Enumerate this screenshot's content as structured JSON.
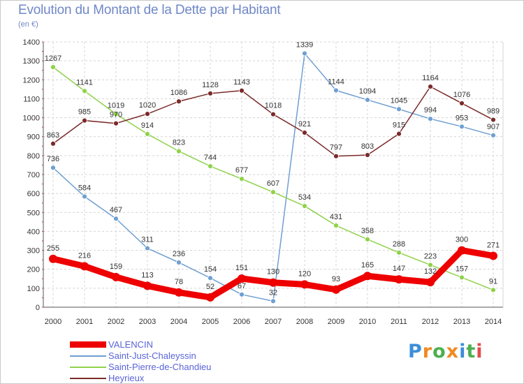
{
  "header": {
    "title": "Evolution du Montant de la Dette par Habitant",
    "subtitle": "(en €)"
  },
  "brand": {
    "letters": [
      "P",
      "r",
      "o",
      "x",
      "i",
      "t",
      "i"
    ],
    "colors": [
      "#3c8ed8",
      "#f08a24",
      "#4caf50",
      "#f08a24",
      "#3c8ed8",
      "#4caf50",
      "#e34b4b"
    ]
  },
  "chart_data": {
    "type": "line",
    "title": "Evolution du Montant de la Dette par Habitant",
    "ylabel": "(en €)",
    "xlabel": "",
    "x": [
      "2000",
      "2001",
      "2002",
      "2003",
      "2004",
      "2005",
      "2006",
      "2007",
      "2008",
      "2009",
      "2010",
      "2011",
      "2012",
      "2013",
      "2014"
    ],
    "ylim": [
      0,
      1400
    ],
    "yticks": [
      "0",
      "100",
      "200",
      "300",
      "400",
      "500",
      "600",
      "700",
      "800",
      "900",
      "1000",
      "1100",
      "1200",
      "1300",
      "1400"
    ],
    "grid": true,
    "legend_position": "bottom-left",
    "series": [
      {
        "name": "VALENCIN",
        "color": "#ee0000",
        "emphasis": true,
        "values": [
          255,
          216,
          159,
          113,
          78,
          52,
          151,
          130,
          120,
          93,
          165,
          147,
          132,
          300,
          271
        ],
        "labels": [
          "255",
          "216",
          "159",
          "113",
          "78",
          "52",
          "151",
          "130",
          "120",
          "93",
          "165",
          "147",
          "132",
          "300",
          "271"
        ]
      },
      {
        "name": "Saint-Just-Chaleyssin",
        "color": "#6f9fd2",
        "emphasis": false,
        "values": [
          736,
          584,
          467,
          311,
          236,
          154,
          67,
          32,
          1339,
          1144,
          1094,
          1045,
          994,
          953,
          907
        ],
        "labels": [
          "736",
          "584",
          "467",
          "311",
          "236",
          "154",
          "67",
          "32",
          "1339",
          "1144",
          "1094",
          "1045",
          "994",
          "953",
          "907"
        ]
      },
      {
        "name": "Saint-Pierre-de-Chandieu",
        "color": "#8fd24a",
        "emphasis": false,
        "values": [
          1267,
          1141,
          1019,
          914,
          823,
          744,
          677,
          607,
          534,
          431,
          358,
          288,
          223,
          157,
          91
        ],
        "labels": [
          "1267",
          "1141",
          "1019",
          "914",
          "823",
          "744",
          "677",
          "607",
          "534",
          "431",
          "358",
          "288",
          "223",
          "157",
          "91"
        ]
      },
      {
        "name": "Heyrieux",
        "color": "#7b2a2a",
        "emphasis": false,
        "values": [
          863,
          985,
          970,
          1020,
          1086,
          1128,
          1143,
          1018,
          921,
          797,
          803,
          915,
          1164,
          1076,
          989
        ],
        "labels": [
          "863",
          "985",
          "970",
          "1020",
          "1086",
          "1128",
          "1143",
          "1018",
          "921",
          "797",
          "803",
          "915",
          "1164",
          "1076",
          "989"
        ]
      }
    ]
  }
}
